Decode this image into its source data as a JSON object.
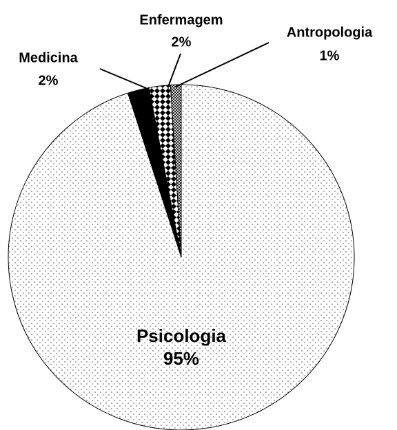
{
  "chart_data": {
    "type": "pie",
    "categories": [
      "Antropologia",
      "Enfermagem",
      "Medicina",
      "Psicologia"
    ],
    "values": [
      1,
      2,
      2,
      95
    ],
    "value_labels": [
      "1%",
      "2%",
      "2%",
      "95%"
    ]
  }
}
